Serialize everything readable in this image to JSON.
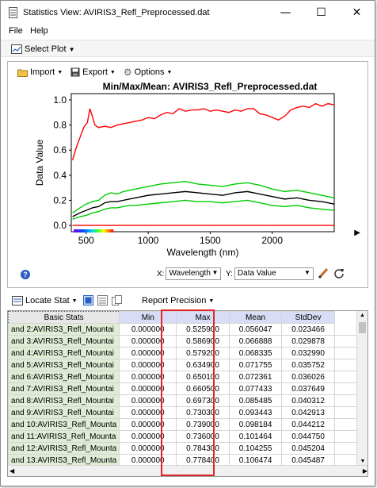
{
  "window": {
    "title": "Statistics View: AVIRIS3_Refl_Preprocessed.dat",
    "minimize": "—",
    "maximize": "☐",
    "close": "✕"
  },
  "menu": {
    "file": "File",
    "help": "Help"
  },
  "toolbar": {
    "select_plot": "Select Plot"
  },
  "plot_toolbar": {
    "import": "Import",
    "export": "Export",
    "options": "Options"
  },
  "chart_data": {
    "type": "line",
    "title": "Min/Max/Mean: AVIRIS3_Refl_Preprocessed.dat",
    "xlabel": "Wavelength (nm)",
    "ylabel": "Data Value",
    "xlim": [
      380,
      2500
    ],
    "ylim": [
      -0.05,
      1.05
    ],
    "x_ticks": [
      500,
      1000,
      1500,
      2000
    ],
    "y_ticks": [
      0.0,
      0.2,
      0.4,
      0.6,
      0.8,
      1.0
    ],
    "x_tick_labels": [
      "500",
      "1000",
      "1500",
      "2000"
    ],
    "y_tick_labels": [
      "0.0",
      "0.2",
      "0.4",
      "0.6",
      "0.8",
      "1.0"
    ],
    "series": [
      {
        "role": "max",
        "color": "#ff0000",
        "x": [
          390,
          420,
          450,
          480,
          510,
          530,
          550,
          570,
          600,
          650,
          700,
          750,
          800,
          850,
          900,
          950,
          1000,
          1050,
          1100,
          1150,
          1200,
          1250,
          1300,
          1350,
          1400,
          1450,
          1500,
          1550,
          1600,
          1650,
          1700,
          1750,
          1800,
          1850,
          1900,
          1950,
          2000,
          2050,
          2100,
          2150,
          2200,
          2250,
          2300,
          2350,
          2400,
          2450,
          2500
        ],
        "y": [
          0.52,
          0.62,
          0.7,
          0.78,
          0.82,
          0.93,
          0.87,
          0.8,
          0.78,
          0.79,
          0.78,
          0.8,
          0.81,
          0.82,
          0.83,
          0.84,
          0.86,
          0.85,
          0.88,
          0.9,
          0.89,
          0.93,
          0.91,
          0.92,
          0.92,
          0.93,
          0.91,
          0.92,
          0.91,
          0.9,
          0.92,
          0.91,
          0.93,
          0.93,
          0.89,
          0.88,
          0.86,
          0.84,
          0.87,
          0.92,
          0.94,
          0.95,
          0.94,
          0.97,
          0.95,
          0.97,
          0.96
        ]
      },
      {
        "role": "mean+stdev",
        "color": "#00cc00",
        "x": [
          390,
          450,
          500,
          550,
          600,
          650,
          700,
          750,
          800,
          850,
          900,
          1000,
          1100,
          1200,
          1300,
          1400,
          1500,
          1600,
          1700,
          1800,
          1900,
          2000,
          2100,
          2200,
          2300,
          2400,
          2500
        ],
        "y": [
          0.1,
          0.14,
          0.17,
          0.19,
          0.2,
          0.24,
          0.26,
          0.25,
          0.27,
          0.28,
          0.29,
          0.31,
          0.33,
          0.34,
          0.35,
          0.33,
          0.32,
          0.31,
          0.33,
          0.34,
          0.32,
          0.29,
          0.27,
          0.28,
          0.26,
          0.24,
          0.22
        ]
      },
      {
        "role": "mean",
        "color": "#000000",
        "x": [
          390,
          450,
          500,
          550,
          600,
          650,
          700,
          750,
          800,
          850,
          900,
          1000,
          1100,
          1200,
          1300,
          1400,
          1500,
          1600,
          1700,
          1800,
          1900,
          2000,
          2100,
          2200,
          2300,
          2400,
          2500
        ],
        "y": [
          0.07,
          0.1,
          0.12,
          0.14,
          0.15,
          0.18,
          0.19,
          0.19,
          0.2,
          0.21,
          0.22,
          0.24,
          0.25,
          0.26,
          0.27,
          0.26,
          0.25,
          0.24,
          0.26,
          0.27,
          0.25,
          0.23,
          0.21,
          0.22,
          0.2,
          0.19,
          0.17
        ]
      },
      {
        "role": "mean-stdev",
        "color": "#00cc00",
        "x": [
          390,
          450,
          500,
          550,
          600,
          650,
          700,
          750,
          800,
          850,
          900,
          1000,
          1100,
          1200,
          1300,
          1400,
          1500,
          1600,
          1700,
          1800,
          1900,
          2000,
          2100,
          2200,
          2300,
          2400,
          2500
        ],
        "y": [
          0.05,
          0.07,
          0.08,
          0.1,
          0.11,
          0.13,
          0.14,
          0.14,
          0.15,
          0.16,
          0.16,
          0.17,
          0.18,
          0.19,
          0.2,
          0.19,
          0.19,
          0.18,
          0.19,
          0.2,
          0.18,
          0.16,
          0.15,
          0.16,
          0.14,
          0.13,
          0.12
        ]
      },
      {
        "role": "min",
        "color": "#ff0000",
        "x": [
          390,
          2500
        ],
        "y": [
          0.0,
          0.0
        ]
      }
    ]
  },
  "axis_controls": {
    "x_label": "X:",
    "x_value": "Wavelength",
    "y_label": "Y:",
    "y_value": "Data Value"
  },
  "stats_toolbar": {
    "locate_stat": "Locate Stat",
    "report_precision": "Report Precision"
  },
  "table": {
    "columns": [
      "Basic Stats",
      "Min",
      "Max",
      "Mean",
      "StdDev"
    ],
    "rows": [
      [
        "and 2:AVIRIS3_Refl_Mountai",
        "0.000000",
        "0.525900",
        "0.056047",
        "0.023466"
      ],
      [
        "and 3:AVIRIS3_Refl_Mountai",
        "0.000000",
        "0.586900",
        "0.066888",
        "0.029878"
      ],
      [
        "and 4:AVIRIS3_Refl_Mountai",
        "0.000000",
        "0.579200",
        "0.068335",
        "0.032990"
      ],
      [
        "and 5:AVIRIS3_Refl_Mountai",
        "0.000000",
        "0.634900",
        "0.071755",
        "0.035752"
      ],
      [
        "and 6:AVIRIS3_Refl_Mountai",
        "0.000000",
        "0.650100",
        "0.072361",
        "0.036026"
      ],
      [
        "and 7:AVIRIS3_Refl_Mountai",
        "0.000000",
        "0.660500",
        "0.077433",
        "0.037649"
      ],
      [
        "and 8:AVIRIS3_Refl_Mountai",
        "0.000000",
        "0.697300",
        "0.085485",
        "0.040312"
      ],
      [
        "and 9:AVIRIS3_Refl_Mountai",
        "0.000000",
        "0.730300",
        "0.093443",
        "0.042913"
      ],
      [
        "and 10:AVIRIS3_Refl_Mounta",
        "0.000000",
        "0.739000",
        "0.098184",
        "0.044212"
      ],
      [
        "and 11:AVIRIS3_Refl_Mounta",
        "0.000000",
        "0.736000",
        "0.101464",
        "0.044750"
      ],
      [
        "and 12:AVIRIS3_Refl_Mounta",
        "0.000000",
        "0.784300",
        "0.104255",
        "0.045204"
      ],
      [
        "and 13:AVIRIS3_Refl_Mounta",
        "0.000000",
        "0.778400",
        "0.106474",
        "0.045487"
      ]
    ]
  }
}
